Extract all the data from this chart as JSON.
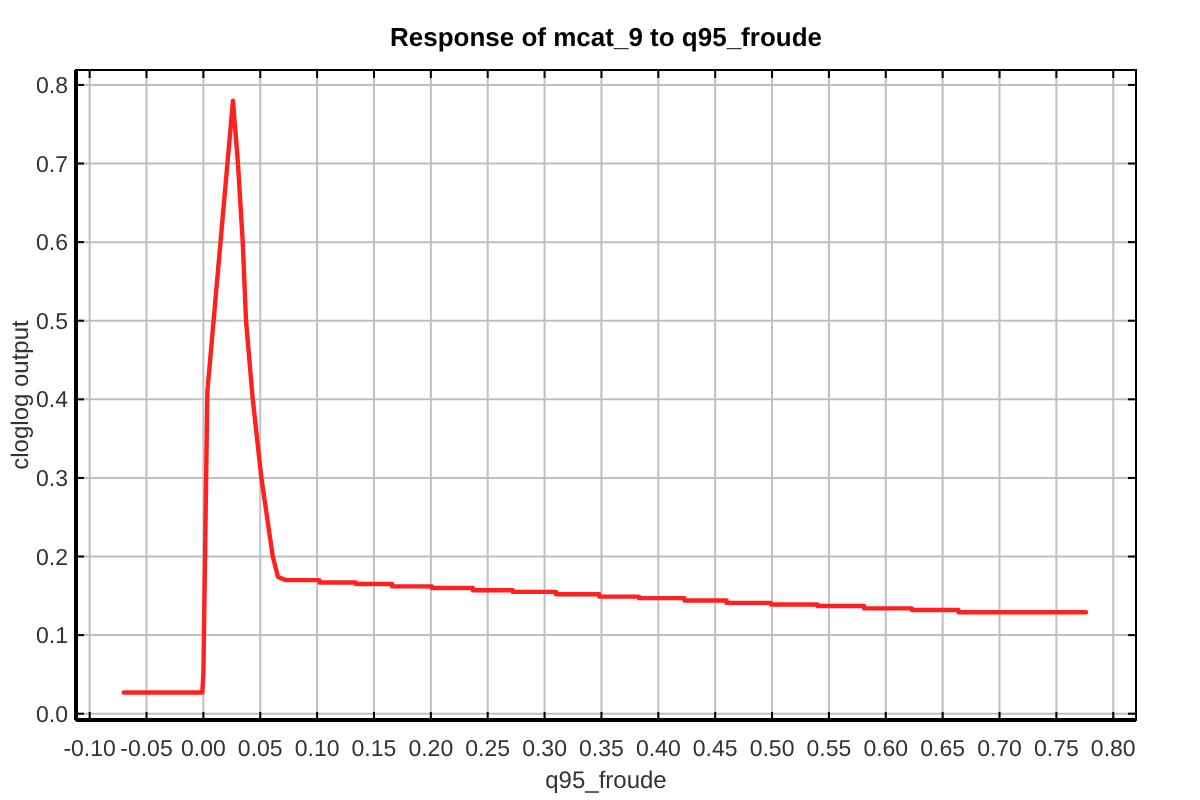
{
  "chart_data": {
    "type": "line",
    "title": "Response of mcat_9 to q95_froude",
    "xlabel": "q95_froude",
    "ylabel": "cloglog output",
    "xlim": [
      -0.112,
      0.82
    ],
    "ylim": [
      -0.008,
      0.819
    ],
    "xticks": [
      {
        "value": -0.1,
        "label": "-0.10"
      },
      {
        "value": -0.05,
        "label": "-0.05"
      },
      {
        "value": 0,
        "label": "0.00"
      },
      {
        "value": 0.05,
        "label": "0.05"
      },
      {
        "value": 0.1,
        "label": "0.10"
      },
      {
        "value": 0.15,
        "label": "0.15"
      },
      {
        "value": 0.2,
        "label": "0.20"
      },
      {
        "value": 0.25,
        "label": "0.25"
      },
      {
        "value": 0.3,
        "label": "0.30"
      },
      {
        "value": 0.35,
        "label": "0.35"
      },
      {
        "value": 0.4,
        "label": "0.40"
      },
      {
        "value": 0.45,
        "label": "0.45"
      },
      {
        "value": 0.5,
        "label": "0.50"
      },
      {
        "value": 0.55,
        "label": "0.55"
      },
      {
        "value": 0.6,
        "label": "0.60"
      },
      {
        "value": 0.65,
        "label": "0.65"
      },
      {
        "value": 0.7,
        "label": "0.70"
      },
      {
        "value": 0.75,
        "label": "0.75"
      },
      {
        "value": 0.8,
        "label": "0.80"
      }
    ],
    "yticks": [
      {
        "value": 0,
        "label": "0.0"
      },
      0.1,
      0.2,
      0.3,
      0.4,
      0.5,
      0.6,
      0.7,
      0.8
    ],
    "grid": true,
    "series": [
      {
        "color": "#ff2020",
        "x": [
          -0.07,
          -0.001,
          0.0,
          0.0035,
          0.026,
          0.0304,
          0.0346,
          0.0375,
          0.0434,
          0.051,
          0.061,
          0.0656,
          0.0726,
          0.102,
          0.102,
          0.134,
          0.134,
          0.166,
          0.166,
          0.201,
          0.201,
          0.237,
          0.237,
          0.272,
          0.272,
          0.31,
          0.31,
          0.348,
          0.348,
          0.383,
          0.383,
          0.423,
          0.423,
          0.46,
          0.46,
          0.499,
          0.499,
          0.54,
          0.54,
          0.581,
          0.581,
          0.623,
          0.623,
          0.664,
          0.664,
          0.776
        ],
        "values": [
          0.027,
          0.027,
          0.05,
          0.41,
          0.78,
          0.7,
          0.6,
          0.5,
          0.4,
          0.3,
          0.2,
          0.174,
          0.17,
          0.17,
          0.167,
          0.167,
          0.165,
          0.165,
          0.162,
          0.162,
          0.16,
          0.16,
          0.157,
          0.157,
          0.155,
          0.155,
          0.152,
          0.152,
          0.149,
          0.149,
          0.147,
          0.147,
          0.144,
          0.144,
          0.141,
          0.141,
          0.139,
          0.139,
          0.137,
          0.137,
          0.134,
          0.134,
          0.132,
          0.132,
          0.129,
          0.129
        ]
      }
    ]
  }
}
